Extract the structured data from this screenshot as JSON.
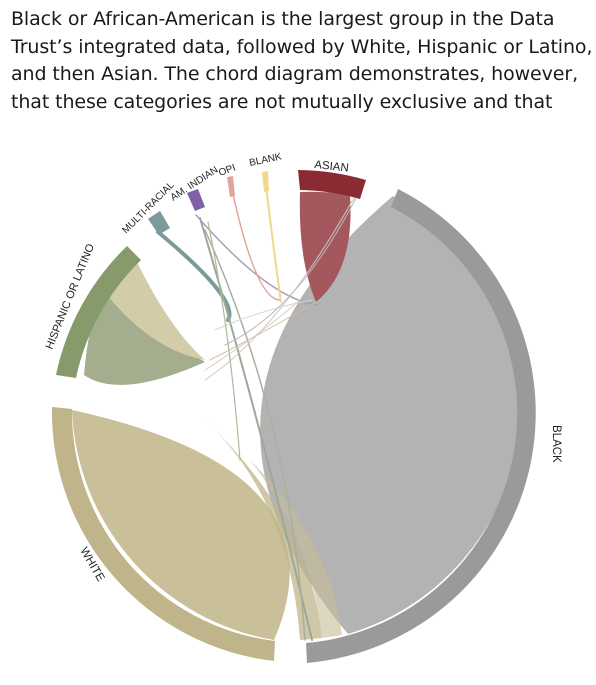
{
  "intro_lines": [
    "Black or African-American is the largest group in the Data",
    "Trust’s integrated data, followed by White, Hispanic or Latino,",
    "and then Asian. The chord diagram demonstrates, however,",
    "that these categories are not mutually exclusive and that"
  ],
  "labels": {
    "asian": "ASIAN",
    "blank": "BLANK",
    "opi": "OPI",
    "am_indian": "AM. INDIAN",
    "multi_racial": "MULTI-RACIAL",
    "hispanic": "HISPANIC OR LATINO",
    "white": "WHITE",
    "black": "BLACK"
  },
  "colors": {
    "black": "#9a9a9a",
    "black_chord": "#b3b3b3",
    "white": "#bfb48a",
    "white_chord": "#c9c099",
    "hispanic": "#879a6b",
    "hispanic_chord": "#a4ad8d",
    "asian": "#8a2b33",
    "asian_chord": "#a4585e",
    "multi_racial": "#7d9a9a",
    "am_indian": "#8060a8",
    "opi": "#e2a39a",
    "blank": "#f0d98a"
  }
}
